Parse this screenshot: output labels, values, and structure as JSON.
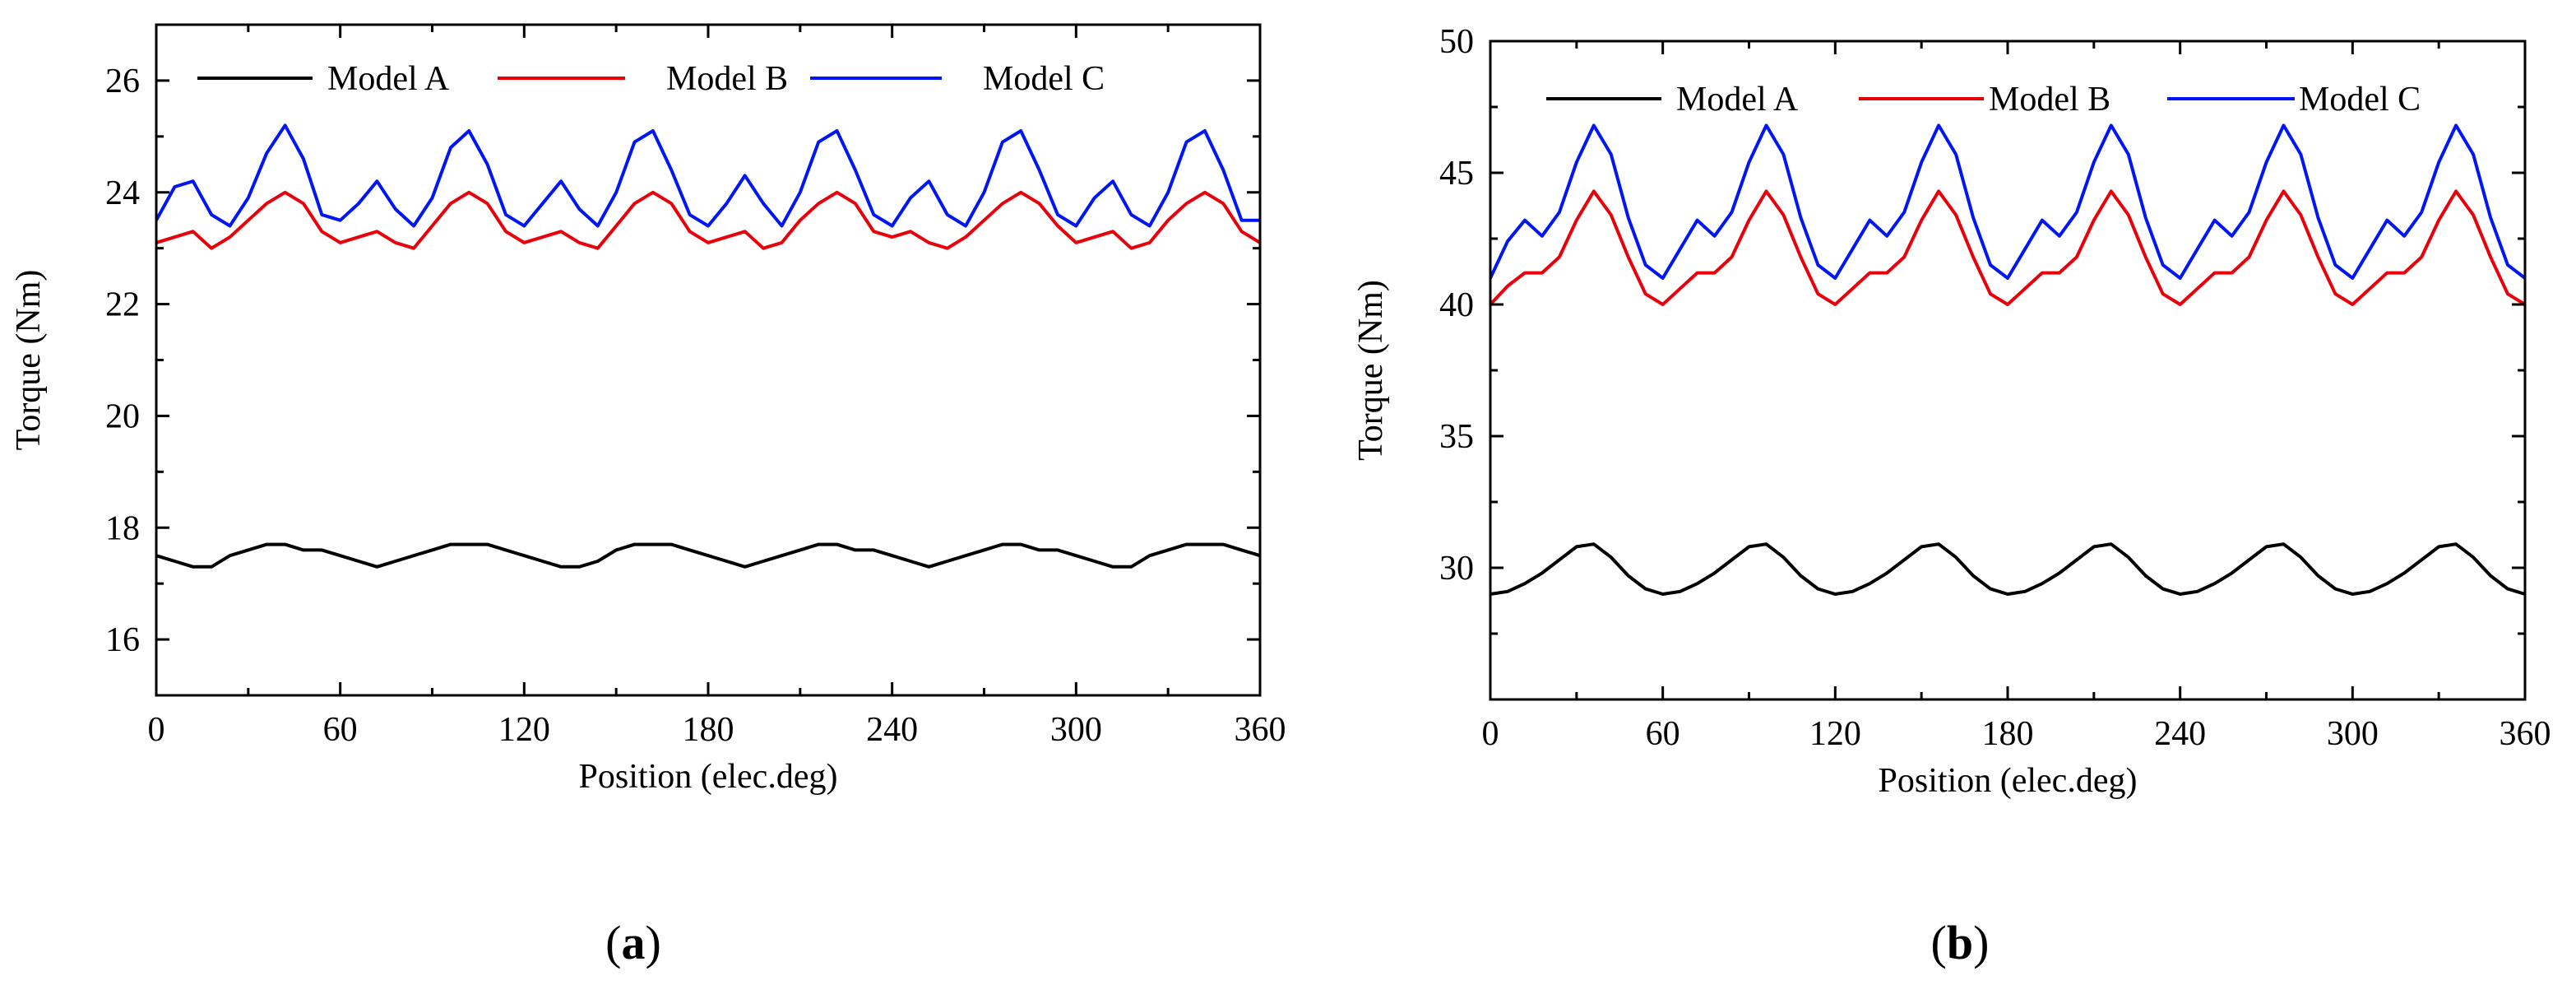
{
  "figure": {
    "panel_labels": [
      {
        "open": "(",
        "letter": "a",
        "close": ")"
      },
      {
        "open": "(",
        "letter": "b",
        "close": ")"
      }
    ]
  },
  "chart_data": [
    {
      "type": "line",
      "panel": "a",
      "title": "",
      "xlabel": "Position (elec.deg)",
      "ylabel": "Torque (Nm)",
      "xlim": [
        0,
        360
      ],
      "ylim": [
        15,
        27
      ],
      "xticks": [
        0,
        60,
        120,
        180,
        240,
        300,
        360
      ],
      "yticks": [
        16,
        18,
        20,
        22,
        24,
        26
      ],
      "legend_position": "top",
      "x": [
        0,
        6,
        12,
        18,
        24,
        30,
        36,
        42,
        48,
        54,
        60,
        66,
        72,
        78,
        84,
        90,
        96,
        102,
        108,
        114,
        120,
        126,
        132,
        138,
        144,
        150,
        156,
        162,
        168,
        174,
        180,
        186,
        192,
        198,
        204,
        210,
        216,
        222,
        228,
        234,
        240,
        246,
        252,
        258,
        264,
        270,
        276,
        282,
        288,
        294,
        300,
        306,
        312,
        318,
        324,
        330,
        336,
        342,
        348,
        354,
        360
      ],
      "series": [
        {
          "name": "Model A",
          "color": "#000000",
          "values": [
            17.5,
            17.4,
            17.3,
            17.3,
            17.5,
            17.6,
            17.7,
            17.7,
            17.6,
            17.6,
            17.5,
            17.4,
            17.3,
            17.4,
            17.5,
            17.6,
            17.7,
            17.7,
            17.7,
            17.6,
            17.5,
            17.4,
            17.3,
            17.3,
            17.4,
            17.6,
            17.7,
            17.7,
            17.7,
            17.6,
            17.5,
            17.4,
            17.3,
            17.4,
            17.5,
            17.6,
            17.7,
            17.7,
            17.6,
            17.6,
            17.5,
            17.4,
            17.3,
            17.4,
            17.5,
            17.6,
            17.7,
            17.7,
            17.6,
            17.6,
            17.5,
            17.4,
            17.3,
            17.3,
            17.5,
            17.6,
            17.7,
            17.7,
            17.7,
            17.6,
            17.5
          ]
        },
        {
          "name": "Model B",
          "color": "#e8000b",
          "values": [
            23.1,
            23.2,
            23.3,
            23.0,
            23.2,
            23.5,
            23.8,
            24.0,
            23.8,
            23.3,
            23.1,
            23.2,
            23.3,
            23.1,
            23.0,
            23.4,
            23.8,
            24.0,
            23.8,
            23.3,
            23.1,
            23.2,
            23.3,
            23.1,
            23.0,
            23.4,
            23.8,
            24.0,
            23.8,
            23.3,
            23.1,
            23.2,
            23.3,
            23.0,
            23.1,
            23.5,
            23.8,
            24.0,
            23.8,
            23.3,
            23.2,
            23.3,
            23.1,
            23.0,
            23.2,
            23.5,
            23.8,
            24.0,
            23.8,
            23.4,
            23.1,
            23.2,
            23.3,
            23.0,
            23.1,
            23.5,
            23.8,
            24.0,
            23.8,
            23.3,
            23.1
          ]
        },
        {
          "name": "Model C",
          "color": "#0016f5",
          "values": [
            23.5,
            24.1,
            24.2,
            23.6,
            23.4,
            23.9,
            24.7,
            25.2,
            24.6,
            23.6,
            23.5,
            23.8,
            24.2,
            23.7,
            23.4,
            23.9,
            24.8,
            25.1,
            24.5,
            23.6,
            23.4,
            23.8,
            24.2,
            23.7,
            23.4,
            24.0,
            24.9,
            25.1,
            24.4,
            23.6,
            23.4,
            23.8,
            24.3,
            23.8,
            23.4,
            24.0,
            24.9,
            25.1,
            24.4,
            23.6,
            23.4,
            23.9,
            24.2,
            23.6,
            23.4,
            24.0,
            24.9,
            25.1,
            24.4,
            23.6,
            23.4,
            23.9,
            24.2,
            23.6,
            23.4,
            24.0,
            24.9,
            25.1,
            24.4,
            23.5,
            23.5
          ]
        }
      ]
    },
    {
      "type": "line",
      "panel": "b",
      "title": "",
      "xlabel": "Position (elec.deg)",
      "ylabel": "Torque (Nm)",
      "xlim": [
        0,
        360
      ],
      "ylim": [
        25,
        50
      ],
      "xticks": [
        0,
        60,
        120,
        180,
        240,
        300,
        360
      ],
      "yticks": [
        30,
        35,
        40,
        45,
        50
      ],
      "legend_position": "top",
      "x": [
        0,
        6,
        12,
        18,
        24,
        30,
        36,
        42,
        48,
        54,
        60,
        66,
        72,
        78,
        84,
        90,
        96,
        102,
        108,
        114,
        120,
        126,
        132,
        138,
        144,
        150,
        156,
        162,
        168,
        174,
        180,
        186,
        192,
        198,
        204,
        210,
        216,
        222,
        228,
        234,
        240,
        246,
        252,
        258,
        264,
        270,
        276,
        282,
        288,
        294,
        300,
        306,
        312,
        318,
        324,
        330,
        336,
        342,
        348,
        354,
        360
      ],
      "series": [
        {
          "name": "Model A",
          "color": "#000000",
          "values": [
            29.0,
            29.1,
            29.4,
            29.8,
            30.3,
            30.8,
            30.9,
            30.4,
            29.7,
            29.2,
            29.0,
            29.1,
            29.4,
            29.8,
            30.3,
            30.8,
            30.9,
            30.4,
            29.7,
            29.2,
            29.0,
            29.1,
            29.4,
            29.8,
            30.3,
            30.8,
            30.9,
            30.4,
            29.7,
            29.2,
            29.0,
            29.1,
            29.4,
            29.8,
            30.3,
            30.8,
            30.9,
            30.4,
            29.7,
            29.2,
            29.0,
            29.1,
            29.4,
            29.8,
            30.3,
            30.8,
            30.9,
            30.4,
            29.7,
            29.2,
            29.0,
            29.1,
            29.4,
            29.8,
            30.3,
            30.8,
            30.9,
            30.4,
            29.7,
            29.2,
            29.0
          ]
        },
        {
          "name": "Model B",
          "color": "#e8000b",
          "values": [
            40.0,
            40.7,
            41.2,
            41.2,
            41.8,
            43.2,
            44.3,
            43.4,
            41.8,
            40.4,
            40.0,
            40.6,
            41.2,
            41.2,
            41.8,
            43.2,
            44.3,
            43.4,
            41.8,
            40.4,
            40.0,
            40.6,
            41.2,
            41.2,
            41.8,
            43.2,
            44.3,
            43.4,
            41.8,
            40.4,
            40.0,
            40.6,
            41.2,
            41.2,
            41.8,
            43.2,
            44.3,
            43.4,
            41.8,
            40.4,
            40.0,
            40.6,
            41.2,
            41.2,
            41.8,
            43.2,
            44.3,
            43.4,
            41.8,
            40.4,
            40.0,
            40.6,
            41.2,
            41.2,
            41.8,
            43.2,
            44.3,
            43.4,
            41.8,
            40.4,
            40.0
          ]
        },
        {
          "name": "Model C",
          "color": "#0016f5",
          "values": [
            41.0,
            42.4,
            43.2,
            42.6,
            43.5,
            45.4,
            46.8,
            45.7,
            43.3,
            41.5,
            41.0,
            42.1,
            43.2,
            42.6,
            43.5,
            45.4,
            46.8,
            45.7,
            43.3,
            41.5,
            41.0,
            42.1,
            43.2,
            42.6,
            43.5,
            45.4,
            46.8,
            45.7,
            43.3,
            41.5,
            41.0,
            42.1,
            43.2,
            42.6,
            43.5,
            45.4,
            46.8,
            45.7,
            43.3,
            41.5,
            41.0,
            42.1,
            43.2,
            42.6,
            43.5,
            45.4,
            46.8,
            45.7,
            43.3,
            41.5,
            41.0,
            42.1,
            43.2,
            42.6,
            43.5,
            45.4,
            46.8,
            45.7,
            43.3,
            41.5,
            41.0
          ]
        }
      ]
    }
  ]
}
